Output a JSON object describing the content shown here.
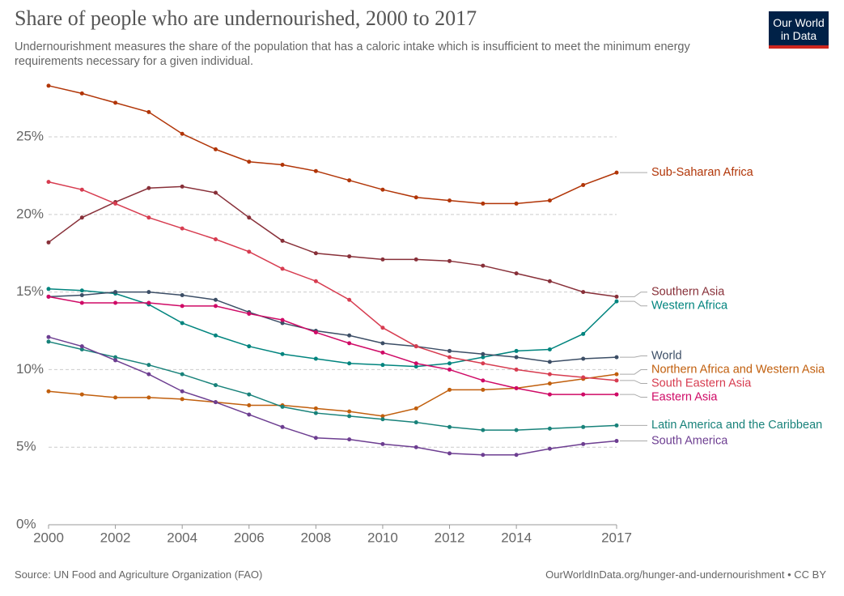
{
  "chart_data": {
    "type": "line",
    "title": "Share of people who are undernourished, 2000 to 2017",
    "subtitle": "Undernourishment measures the share of the population that has a caloric intake which is insufficient to meet the minimum energy requirements necessary for a given individual.",
    "source": "Source: UN Food and Agriculture Organization (FAO)",
    "url": "OurWorldInData.org/hunger-and-undernourishment • CC BY",
    "logo": [
      "Our World",
      "in Data"
    ],
    "x": [
      2000,
      2001,
      2002,
      2003,
      2004,
      2005,
      2006,
      2007,
      2008,
      2009,
      2010,
      2011,
      2012,
      2013,
      2014,
      2015,
      2016,
      2017
    ],
    "xlim": [
      2000,
      2017
    ],
    "xticks": [
      2000,
      2002,
      2004,
      2006,
      2008,
      2010,
      2012,
      2014,
      2017
    ],
    "ylim": [
      0,
      28.5
    ],
    "yticks": [
      {
        "value": 0,
        "label": "0%"
      },
      {
        "value": 5,
        "label": "5%"
      },
      {
        "value": 10,
        "label": "10%"
      },
      {
        "value": 15,
        "label": "15%"
      },
      {
        "value": 20,
        "label": "20%"
      },
      {
        "value": 25,
        "label": "25%"
      }
    ],
    "grid": true,
    "series": [
      {
        "name": "Sub-Saharan Africa",
        "color": "#b13507",
        "values": [
          28.3,
          27.8,
          27.2,
          26.6,
          25.2,
          24.2,
          23.4,
          23.2,
          22.8,
          22.2,
          21.6,
          21.1,
          20.9,
          20.7,
          20.7,
          20.9,
          21.9,
          22.7
        ]
      },
      {
        "name": "Southern Asia",
        "color": "#883039",
        "values": [
          18.2,
          19.8,
          20.8,
          21.7,
          21.8,
          21.4,
          19.8,
          18.3,
          17.5,
          17.3,
          17.1,
          17.1,
          17.0,
          16.7,
          16.2,
          15.7,
          15.0,
          14.7
        ]
      },
      {
        "name": "Western Africa",
        "color": "#00847e",
        "values": [
          15.2,
          15.1,
          14.9,
          14.2,
          13.0,
          12.2,
          11.5,
          11.0,
          10.7,
          10.4,
          10.3,
          10.2,
          10.4,
          10.8,
          11.2,
          11.3,
          12.3,
          14.4
        ]
      },
      {
        "name": "World",
        "color": "#3c4e66",
        "values": [
          14.7,
          14.8,
          15.0,
          15.0,
          14.8,
          14.5,
          13.7,
          13.0,
          12.5,
          12.2,
          11.7,
          11.5,
          11.2,
          11.0,
          10.8,
          10.5,
          10.7,
          10.8
        ]
      },
      {
        "name": "Northern Africa and Western Asia",
        "color": "#c15f0d",
        "values": [
          8.6,
          8.4,
          8.2,
          8.2,
          8.1,
          7.9,
          7.7,
          7.7,
          7.5,
          7.3,
          7.0,
          7.5,
          8.7,
          8.7,
          8.8,
          9.1,
          9.4,
          9.7
        ]
      },
      {
        "name": "South Eastern Asia",
        "color": "#d73c50",
        "values": [
          22.1,
          21.6,
          20.7,
          19.8,
          19.1,
          18.4,
          17.6,
          16.5,
          15.7,
          14.5,
          12.7,
          11.5,
          10.8,
          10.4,
          10.0,
          9.7,
          9.5,
          9.3
        ]
      },
      {
        "name": "Eastern Asia",
        "color": "#cf0a66",
        "values": [
          14.7,
          14.3,
          14.3,
          14.3,
          14.1,
          14.1,
          13.6,
          13.2,
          12.4,
          11.7,
          11.1,
          10.4,
          10.0,
          9.3,
          8.8,
          8.4,
          8.4,
          8.4
        ]
      },
      {
        "name": "Latin America and the Caribbean",
        "color": "#18827a",
        "values": [
          11.8,
          11.3,
          10.8,
          10.3,
          9.7,
          9.0,
          8.4,
          7.6,
          7.2,
          7.0,
          6.8,
          6.6,
          6.3,
          6.1,
          6.1,
          6.2,
          6.3,
          6.4
        ]
      },
      {
        "name": "South America",
        "color": "#6d3e91",
        "values": [
          12.1,
          11.5,
          10.6,
          9.7,
          8.6,
          7.9,
          7.1,
          6.3,
          5.6,
          5.5,
          5.2,
          5.0,
          4.6,
          4.5,
          4.5,
          4.9,
          5.2,
          5.4
        ]
      }
    ]
  }
}
